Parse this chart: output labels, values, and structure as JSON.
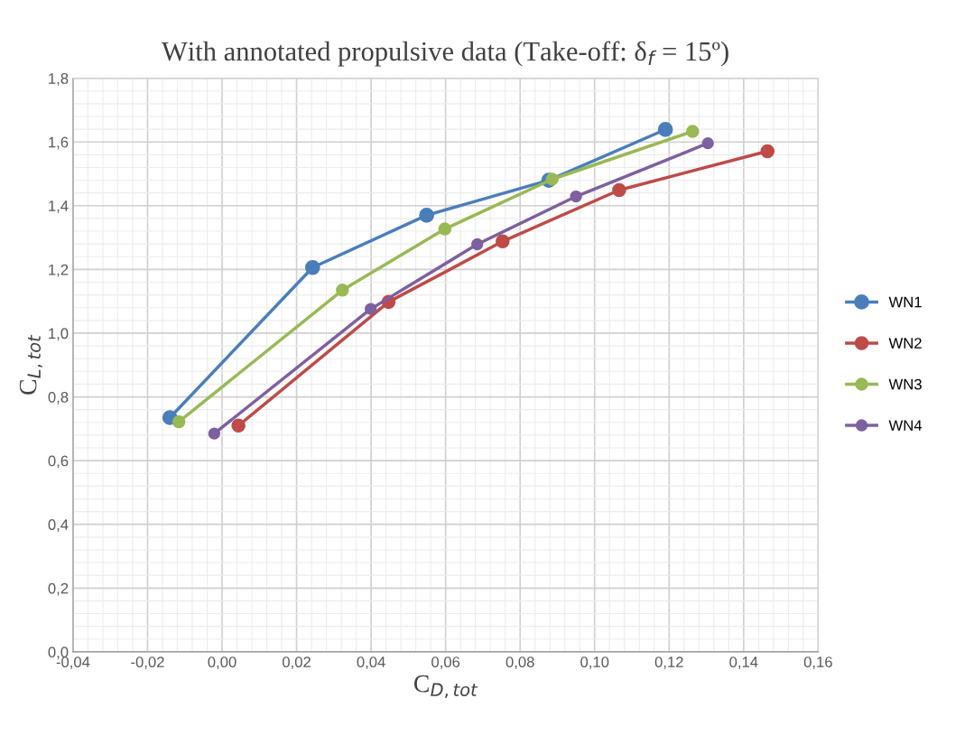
{
  "chart_data": {
    "type": "line",
    "title": "With annotated propulsive data (Take-off: δ$_{f}$ = 15º)",
    "xlabel": "C$_{D,tot}$",
    "ylabel": "C$_{L,tot}$",
    "series": [
      {
        "name": "WN1",
        "color": "#4a7ebb",
        "x": [
          -0.014,
          0.0243,
          0.0549,
          0.0877,
          0.119
        ],
        "values": [
          0.735,
          1.206,
          1.37,
          1.48,
          1.639
        ]
      },
      {
        "name": "WN2",
        "color": "#be4b48",
        "x": [
          0.0044,
          0.0447,
          0.0753,
          0.1066,
          0.1464
        ],
        "values": [
          0.71,
          1.098,
          1.288,
          1.449,
          1.571
        ]
      },
      {
        "name": "WN3",
        "color": "#98b954",
        "x": [
          -0.0116,
          0.0323,
          0.0598,
          0.0886,
          0.1263
        ],
        "values": [
          0.722,
          1.135,
          1.327,
          1.483,
          1.633
        ]
      },
      {
        "name": "WN4",
        "color": "#7d60a0",
        "x": [
          -0.0021,
          0.0399,
          0.0685,
          0.095,
          0.1304
        ],
        "values": [
          0.685,
          1.076,
          1.279,
          1.429,
          1.596
        ]
      }
    ],
    "xlim": [
      -0.04,
      0.16
    ],
    "xticks": [
      {
        "value": -0.04,
        "label": "-0,04"
      },
      {
        "value": -0.02,
        "label": "-0,02"
      },
      {
        "value": 0,
        "label": "0,00"
      },
      {
        "value": 0.02,
        "label": "0,02"
      },
      {
        "value": 0.04,
        "label": "0,04"
      },
      {
        "value": 0.06,
        "label": "0,06"
      },
      {
        "value": 0.08,
        "label": "0,08"
      },
      {
        "value": 0.1,
        "label": "0,10"
      },
      {
        "value": 0.12,
        "label": "0,12"
      },
      {
        "value": 0.14,
        "label": "0,14"
      },
      {
        "value": 0.16,
        "label": "0,16"
      }
    ],
    "ylim": [
      0,
      1.8
    ],
    "yticks": [
      {
        "value": 0,
        "label": "0,0"
      },
      {
        "value": 0.2,
        "label": "0,2"
      },
      {
        "value": 0.4,
        "label": "0,4"
      },
      {
        "value": 0.6,
        "label": "0,6"
      },
      {
        "value": 0.8,
        "label": "0,8"
      },
      {
        "value": 1.0,
        "label": "1,0"
      },
      {
        "value": 1.2,
        "label": "1,2"
      },
      {
        "value": 1.4,
        "label": "1,4"
      },
      {
        "value": 1.6,
        "label": "1,6"
      },
      {
        "value": 1.8,
        "label": "1,8"
      }
    ],
    "grid": true,
    "legend": "right",
    "marker": "circle",
    "line_style": "solid"
  }
}
